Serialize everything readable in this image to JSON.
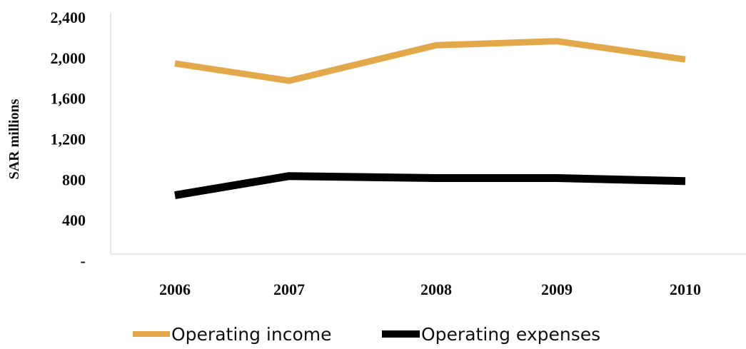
{
  "chart_data": {
    "type": "line",
    "categories": [
      "2006",
      "2007",
      "2008",
      "2009",
      "2010"
    ],
    "series": [
      {
        "name": "Operating income",
        "values": [
          1950,
          1780,
          2130,
          2170,
          1990
        ],
        "color": "#E3A84A"
      },
      {
        "name": "Operating expenses",
        "values": [
          650,
          840,
          820,
          820,
          790
        ],
        "color": "#000000"
      }
    ],
    "title": "",
    "xlabel": "",
    "ylabel": "SAR millions",
    "ylim": [
      0,
      2400
    ],
    "yticks": [
      {
        "value": 2400,
        "label": "2,400"
      },
      {
        "value": 2000,
        "label": "2,000"
      },
      {
        "value": 1600,
        "label": "1,600"
      },
      {
        "value": 1200,
        "label": "1,200"
      },
      {
        "value": 800,
        "label": "800"
      },
      {
        "value": 400,
        "label": "400"
      },
      {
        "value": 0,
        "label": "-"
      }
    ],
    "grid": false,
    "legend": "bottom"
  }
}
